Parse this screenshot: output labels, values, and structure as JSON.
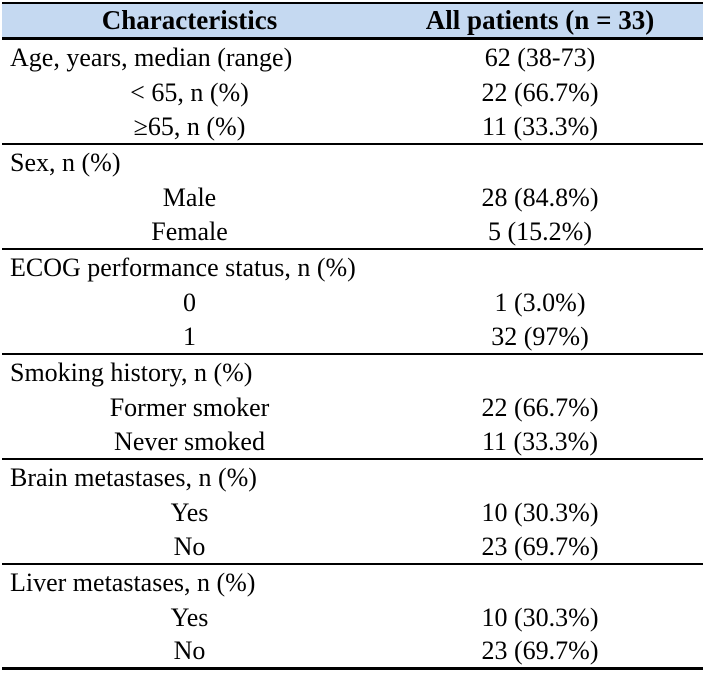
{
  "table": {
    "colors": {
      "header_bg": "#c5d9f1",
      "rule": "#000000",
      "text": "#000000"
    },
    "header": {
      "characteristics": "Characteristics",
      "all_patients": "All patients (n = 33)"
    },
    "rows": [
      {
        "type": "category",
        "label": "Age, years, median (range)",
        "value": "62 (38-73)"
      },
      {
        "type": "sub",
        "label": "< 65, n (%)",
        "value": "22 (66.7%)"
      },
      {
        "type": "sub",
        "label": "≥65, n (%)",
        "value": "11 (33.3%)"
      },
      {
        "type": "category",
        "label": "Sex, n (%)",
        "value": ""
      },
      {
        "type": "sub",
        "label": "Male",
        "value": "28 (84.8%)"
      },
      {
        "type": "sub",
        "label": "Female",
        "value": "5 (15.2%)"
      },
      {
        "type": "category",
        "label": "ECOG performance status, n (%)",
        "value": ""
      },
      {
        "type": "sub",
        "label": "0",
        "value": "1 (3.0%)"
      },
      {
        "type": "sub",
        "label": "1",
        "value": "32 (97%)"
      },
      {
        "type": "category",
        "label": "Smoking history, n (%)",
        "value": ""
      },
      {
        "type": "sub",
        "label": "Former smoker",
        "value": "22 (66.7%)"
      },
      {
        "type": "sub",
        "label": "Never smoked",
        "value": "11 (33.3%)"
      },
      {
        "type": "category",
        "label": "Brain metastases, n (%)",
        "value": ""
      },
      {
        "type": "sub",
        "label": "Yes",
        "value": "10 (30.3%)"
      },
      {
        "type": "sub",
        "label": "No",
        "value": "23 (69.7%)"
      },
      {
        "type": "category",
        "label": "Liver metastases, n (%)",
        "value": ""
      },
      {
        "type": "sub",
        "label": "Yes",
        "value": "10 (30.3%)"
      },
      {
        "type": "sub",
        "label": "No",
        "value": "23 (69.7%)"
      }
    ]
  }
}
